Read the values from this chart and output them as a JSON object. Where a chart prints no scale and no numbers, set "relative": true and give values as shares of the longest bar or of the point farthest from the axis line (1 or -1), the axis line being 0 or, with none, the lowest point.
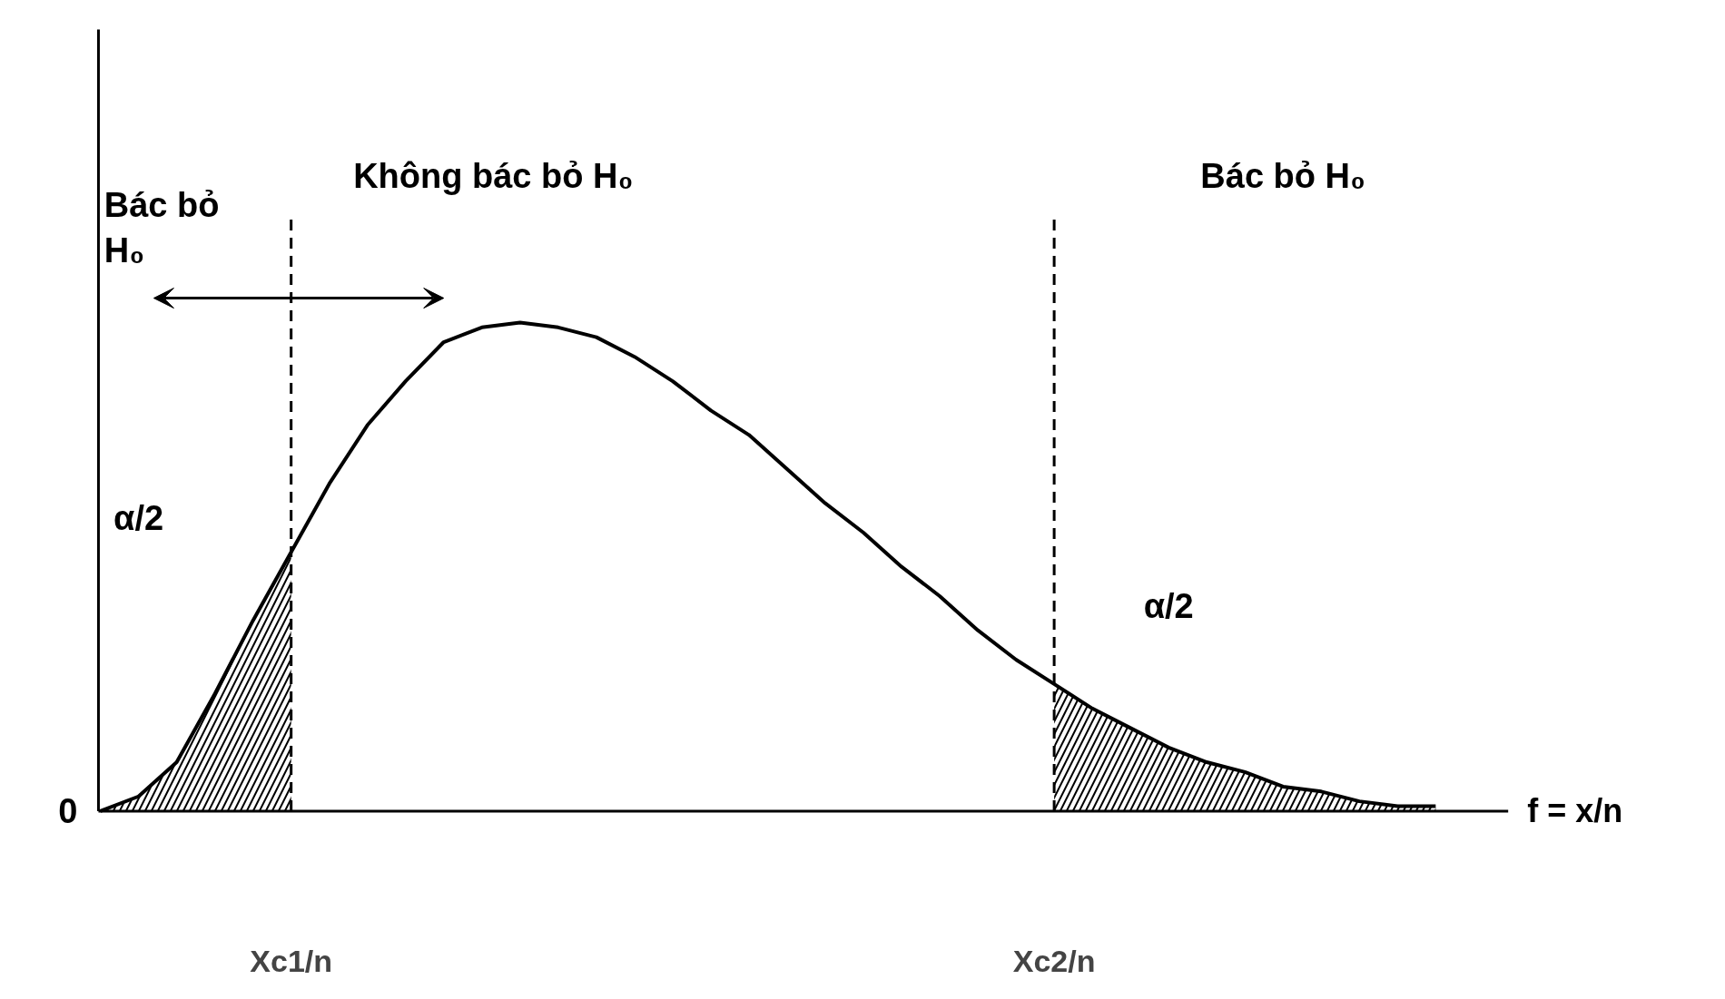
{
  "chart_data": {
    "type": "line",
    "relative": true,
    "categories": [
      null,
      null,
      null,
      null,
      null,
      "Xc1/n",
      null,
      null,
      null,
      null,
      null,
      null,
      null,
      null,
      null,
      null,
      null,
      null,
      null,
      null,
      null,
      null,
      null,
      null,
      null,
      "Xc2/n",
      null,
      null,
      null,
      null,
      null,
      null,
      null,
      null,
      null,
      null
    ],
    "series": [
      {
        "color": "#000000",
        "values": [
          0,
          0.03,
          0.1,
          0.24,
          0.39,
          0.53,
          0.67,
          0.79,
          0.88,
          0.96,
          0.99,
          1.0,
          0.99,
          0.97,
          0.93,
          0.88,
          0.82,
          0.77,
          0.7,
          0.63,
          0.57,
          0.5,
          0.44,
          0.37,
          0.31,
          0.26,
          0.21,
          0.17,
          0.13,
          0.1,
          0.08,
          0.05,
          0.04,
          0.02,
          0.01,
          0.01
        ]
      },
      {
        "type": "area",
        "color": "#000000",
        "values": [
          0,
          0.03,
          0.1,
          0.24,
          0.39,
          0.53,
          null,
          null,
          null,
          null,
          null,
          null,
          null,
          null,
          null,
          null,
          null,
          null,
          null,
          null,
          null,
          null,
          null,
          null,
          null,
          null,
          null,
          null,
          null,
          null,
          null,
          null,
          null,
          null,
          null,
          null
        ]
      },
      {
        "type": "area",
        "color": "#000000",
        "values": [
          null,
          null,
          null,
          null,
          null,
          null,
          null,
          null,
          null,
          null,
          null,
          null,
          null,
          null,
          null,
          null,
          null,
          null,
          null,
          null,
          null,
          null,
          null,
          null,
          null,
          0.26,
          0.21,
          0.17,
          0.13,
          0.1,
          0.08,
          0.05,
          0.04,
          0.02,
          0.01,
          0.01
        ]
      }
    ],
    "ref_lines": [
      {
        "axis": "x",
        "value": "Xc1/n",
        "line_style": "dashed"
      },
      {
        "axis": "x",
        "value": "Xc2/n",
        "line_style": "dashed"
      }
    ],
    "xlabel": "f = x/n",
    "annotations": [
      "Bác bỏ\nH₀",
      "Không bác bỏ H₀",
      "Bác bỏ H₀",
      "α/2",
      "α/2",
      "0"
    ]
  }
}
